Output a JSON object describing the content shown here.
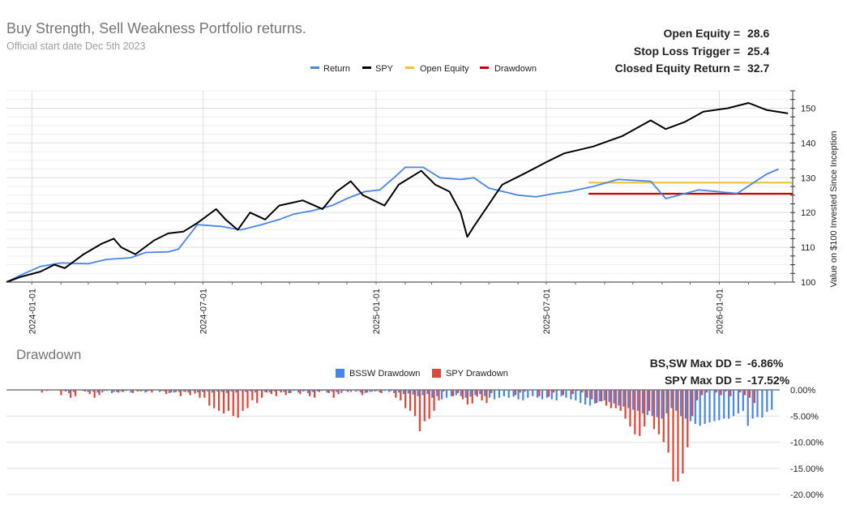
{
  "colors": {
    "return": "#4a86e8",
    "spy": "#000000",
    "open_equity": "#f1c232",
    "drawdown": "#cc0000",
    "bssw_dd": "#4a86e8",
    "spy_dd": "#e0473a",
    "grid": "#e6e6e6",
    "title": "#757575",
    "text": "#222222"
  },
  "chart_data": [
    {
      "type": "line",
      "title": "Buy Strength, Sell Weakness Portfolio returns.",
      "subtitle": "Official start date Dec 5th 2023",
      "ylabel": "Value on $100 Invested Since Inception",
      "xlabel": "",
      "ylim": [
        100,
        155
      ],
      "y_ticks": [
        "100",
        "110",
        "120",
        "130",
        "140",
        "150"
      ],
      "x_ticks": [
        "2024-01-01",
        "2024-07-01",
        "2025-01-01",
        "2025-07-01",
        "2026-01-01"
      ],
      "x_range": [
        "2023-12-05",
        "2026-03-20"
      ],
      "legend": {
        "position": "top",
        "items": [
          "Return",
          "SPY",
          "Open Equity",
          "Drawdown"
        ]
      },
      "stats": [
        {
          "label": "Open Equity =",
          "value": "28.6"
        },
        {
          "label": "Stop Loss Trigger =",
          "value": "25.4"
        },
        {
          "label": "Closed Equity Return =",
          "value": "32.7"
        }
      ],
      "series": [
        {
          "name": "Return",
          "points": [
            [
              "2023-12-05",
              100
            ],
            [
              "2023-12-20",
              102
            ],
            [
              "2024-01-10",
              104.5
            ],
            [
              "2024-02-01",
              105.5
            ],
            [
              "2024-03-01",
              105.3
            ],
            [
              "2024-03-20",
              106.5
            ],
            [
              "2024-04-15",
              107
            ],
            [
              "2024-05-01",
              108.5
            ],
            [
              "2024-05-25",
              108.7
            ],
            [
              "2024-06-05",
              109.5
            ],
            [
              "2024-06-15",
              113
            ],
            [
              "2024-06-25",
              116.5
            ],
            [
              "2024-07-20",
              116
            ],
            [
              "2024-08-10",
              115
            ],
            [
              "2024-09-01",
              116.5
            ],
            [
              "2024-09-20",
              118
            ],
            [
              "2024-10-05",
              119.5
            ],
            [
              "2024-10-25",
              120.5
            ],
            [
              "2024-11-15",
              122
            ],
            [
              "2024-12-01",
              124
            ],
            [
              "2024-12-20",
              126
            ],
            [
              "2025-01-05",
              126.5
            ],
            [
              "2025-01-20",
              130
            ],
            [
              "2025-02-01",
              133
            ],
            [
              "2025-02-20",
              133
            ],
            [
              "2025-03-10",
              130
            ],
            [
              "2025-04-01",
              129.5
            ],
            [
              "2025-04-15",
              130
            ],
            [
              "2025-05-01",
              127
            ],
            [
              "2025-06-01",
              125
            ],
            [
              "2025-06-20",
              124.5
            ],
            [
              "2025-07-10",
              125.5
            ],
            [
              "2025-07-25",
              126
            ],
            [
              "2025-08-20",
              127.5
            ],
            [
              "2025-09-15",
              129.5
            ],
            [
              "2025-10-20",
              129
            ],
            [
              "2025-11-05",
              124
            ],
            [
              "2025-12-10",
              126.5
            ],
            [
              "2026-01-20",
              125.5
            ],
            [
              "2026-02-20",
              131
            ],
            [
              "2026-03-05",
              132.5
            ]
          ]
        },
        {
          "name": "SPY",
          "points": [
            [
              "2023-12-05",
              100
            ],
            [
              "2023-12-20",
              101.5
            ],
            [
              "2024-01-10",
              103
            ],
            [
              "2024-01-25",
              105
            ],
            [
              "2024-02-05",
              104
            ],
            [
              "2024-02-25",
              108
            ],
            [
              "2024-03-15",
              111
            ],
            [
              "2024-03-28",
              112.5
            ],
            [
              "2024-04-05",
              110
            ],
            [
              "2024-04-20",
              108
            ],
            [
              "2024-05-10",
              112
            ],
            [
              "2024-05-25",
              114
            ],
            [
              "2024-06-10",
              114.5
            ],
            [
              "2024-06-25",
              117
            ],
            [
              "2024-07-15",
              121
            ],
            [
              "2024-07-25",
              118
            ],
            [
              "2024-08-07",
              115
            ],
            [
              "2024-08-20",
              120
            ],
            [
              "2024-09-05",
              118
            ],
            [
              "2024-09-20",
              122
            ],
            [
              "2024-10-15",
              123.5
            ],
            [
              "2024-11-05",
              121
            ],
            [
              "2024-11-20",
              126
            ],
            [
              "2024-12-05",
              129
            ],
            [
              "2024-12-18",
              125
            ],
            [
              "2025-01-10",
              122
            ],
            [
              "2025-01-25",
              128
            ],
            [
              "2025-02-18",
              132
            ],
            [
              "2025-03-05",
              128
            ],
            [
              "2025-03-20",
              126
            ],
            [
              "2025-04-01",
              120
            ],
            [
              "2025-04-08",
              113
            ],
            [
              "2025-04-15",
              116
            ],
            [
              "2025-04-25",
              120
            ],
            [
              "2025-05-15",
              128
            ],
            [
              "2025-06-10",
              131.5
            ],
            [
              "2025-07-01",
              134.5
            ],
            [
              "2025-07-20",
              137
            ],
            [
              "2025-08-20",
              139
            ],
            [
              "2025-09-20",
              142
            ],
            [
              "2025-10-20",
              146.5
            ],
            [
              "2025-11-05",
              144
            ],
            [
              "2025-11-25",
              146
            ],
            [
              "2025-12-15",
              149
            ],
            [
              "2026-01-10",
              150
            ],
            [
              "2026-02-01",
              151.5
            ],
            [
              "2026-02-20",
              149.5
            ],
            [
              "2026-03-15",
              148.5
            ]
          ]
        },
        {
          "name": "Open Equity",
          "points": [
            [
              "2025-08-15",
              128.6
            ],
            [
              "2026-03-20",
              128.6
            ]
          ]
        },
        {
          "name": "Drawdown",
          "points": [
            [
              "2025-08-15",
              125.4
            ],
            [
              "2026-03-20",
              125.4
            ]
          ]
        }
      ]
    },
    {
      "type": "bar",
      "title": "Drawdown",
      "ylabel": "",
      "ylim": [
        -20,
        0
      ],
      "y_ticks": [
        "0.00%",
        "-5.00%",
        "-10.00%",
        "-15.00%",
        "-20.00%"
      ],
      "legend": {
        "position": "top",
        "items": [
          "BSSW Drawdown",
          "SPY Drawdown"
        ]
      },
      "stats": [
        {
          "label": "BS,SW Max DD =",
          "value": "-6.86%"
        },
        {
          "label": "SPY Max DD =",
          "value": "-17.52%"
        }
      ],
      "series": [
        {
          "name": "SPY Drawdown",
          "values": [
            0,
            0,
            0,
            0,
            0,
            0,
            -0.5,
            -0.2,
            0,
            0,
            -1,
            -0.3,
            -1.5,
            -1.2,
            0,
            -0.3,
            -0.8,
            -1.5,
            -1,
            -0.2,
            0,
            -0.4,
            -0.5,
            -0.4,
            0,
            -0.6,
            -0.3,
            -0.2,
            -0.3,
            -0.5,
            0,
            -0.2,
            -0.8,
            -0.5,
            -0.4,
            -1.2,
            -0.4,
            -1,
            -0.7,
            -1.5,
            -1.5,
            -3,
            -3.5,
            -4,
            -4.5,
            -4,
            -5,
            -5.3,
            -4,
            -3.5,
            -2,
            -2.5,
            -1.5,
            -0.5,
            -0.8,
            -1.2,
            -0.5,
            -1,
            -0.6,
            0,
            -0.8,
            -0.2,
            -1.2,
            -1.5,
            -0.4,
            0,
            -0.6,
            -1.5,
            -0.8,
            -0.2,
            -0.4,
            0,
            -0.2,
            -1,
            -0.5,
            -0.3,
            -0.2,
            -0.6,
            0,
            -0.2,
            -1.5,
            -2,
            -3.5,
            -4,
            -5,
            -7.9,
            -6,
            -5.5,
            -4,
            -2,
            -0.3,
            0,
            -1.2,
            -0.6,
            -1.8,
            -2.8,
            -2.6,
            -1.3,
            -2,
            -2.5,
            -0.6,
            0,
            0,
            0,
            0,
            -1,
            -0.5,
            -0.3,
            0,
            0,
            -1.2,
            0,
            -1.3,
            -0.5,
            0,
            -1,
            0,
            -0.8,
            -0.2,
            -0.5,
            -1.5,
            -1.8,
            -2.5,
            -2.2,
            -3,
            -3.5,
            -3.5,
            -4,
            -5.5,
            -7,
            -8.5,
            -8.8,
            -7,
            -4,
            -7.5,
            -8.5,
            -10,
            -12,
            -17.5,
            -17.52,
            -16,
            -11,
            -5,
            -2,
            -1,
            -0.5,
            0,
            -0.5,
            -1,
            -0.3,
            -1.2,
            0,
            -0.5,
            -1,
            -1.5,
            -2.5
          ]
        },
        {
          "name": "BSSW Drawdown",
          "values": [
            0,
            0,
            0,
            0,
            0,
            0,
            0,
            0,
            0,
            0,
            0,
            -0.2,
            -0.6,
            -0.4,
            0,
            -0.2,
            -0.4,
            -0.3,
            -0.5,
            -0.5,
            -0.2,
            -0.6,
            -0.4,
            -0.3,
            -0.2,
            -0.5,
            0,
            -0.3,
            -0.5,
            -0.2,
            0,
            -0.4,
            -0.3,
            -0.6,
            -0.5,
            -0.4,
            -0.3,
            -0.5,
            -0.2,
            -0.5,
            -0.4,
            -0.3,
            -0.5,
            -0.3,
            -0.4,
            -0.6,
            -0.3,
            -0.5,
            -0.2,
            -0.4,
            -0.3,
            -0.5,
            -0.2,
            -0.4,
            -0.5,
            -0.3,
            -0.2,
            -0.4,
            -0.6,
            -0.2,
            -0.5,
            -0.3,
            -0.6,
            -0.4,
            -0.3,
            -0.2,
            -0.5,
            -0.3,
            -0.4,
            -0.6,
            -0.2,
            -0.4,
            -0.3,
            -0.5,
            -0.6,
            -0.4,
            -0.3,
            -0.5,
            -0.2,
            -0.4,
            -0.6,
            -0.5,
            -0.8,
            -0.7,
            -0.9,
            -1.2,
            -1,
            -0.8,
            -1.5,
            -1.2,
            -1.8,
            -1.5,
            -1.2,
            -1,
            -1.2,
            -1.5,
            -1.3,
            -1,
            -0.8,
            -1.2,
            -1.5,
            -1.8,
            -1.5,
            -1.2,
            -1.5,
            -1.3,
            -1.8,
            -2,
            -1.5,
            -1.2,
            -1.5,
            -1.8,
            -1.5,
            -1.8,
            -2,
            -1.2,
            -1.5,
            -1.8,
            -2,
            -2.5,
            -2.8,
            -3,
            -2.6,
            -2.2,
            -2,
            -2.3,
            -2.6,
            -3,
            -3.2,
            -3.5,
            -3.8,
            -4,
            -4.5,
            -4.8,
            -5,
            -5.2,
            -5.5,
            -4.5,
            -3.5,
            -4,
            -5,
            -5.5,
            -6,
            -6.5,
            -6.86,
            -6.5,
            -6.2,
            -6,
            -5.8,
            -5.5,
            -5.5,
            -5,
            -4.5,
            -4,
            -6.86,
            -5.5,
            -5.2,
            -5.3,
            -4.2,
            -3.8
          ]
        }
      ]
    }
  ]
}
